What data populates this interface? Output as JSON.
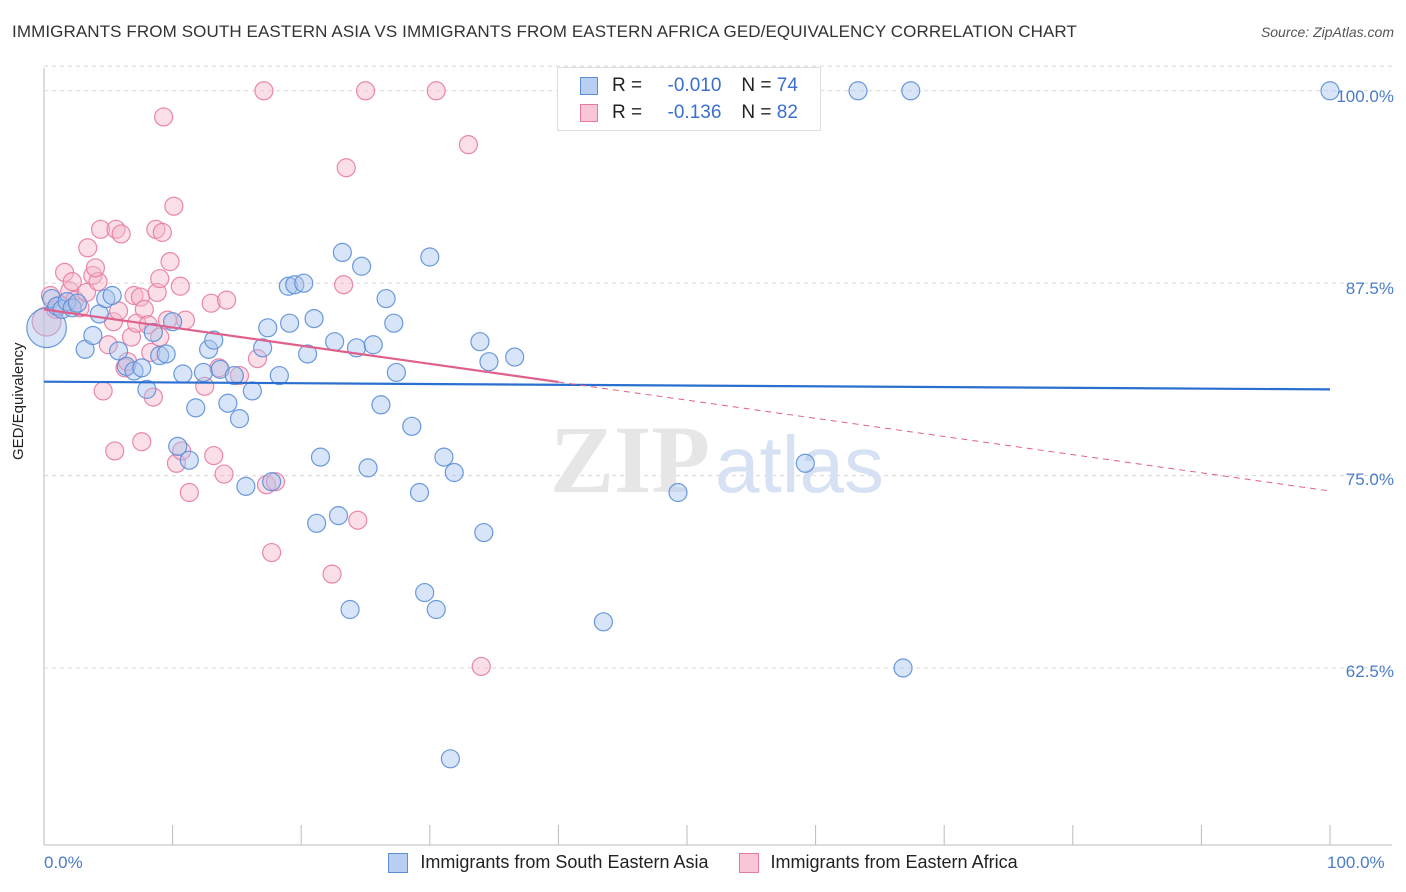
{
  "header": {
    "title": "IMMIGRANTS FROM SOUTH EASTERN ASIA VS IMMIGRANTS FROM EASTERN AFRICA GED/EQUIVALENCY CORRELATION CHART",
    "source": "Source: ZipAtlas.com"
  },
  "watermark": {
    "zip": "ZIP",
    "atlas": "atlas"
  },
  "legend": {
    "r_label": "R =",
    "n_label": "N =",
    "series1": {
      "r": "-0.010",
      "n": "74"
    },
    "series2": {
      "r": "-0.136",
      "n": "82"
    }
  },
  "colors": {
    "blue": "#5b8fd8",
    "blue_fill": "#a9c4ee",
    "blue_line": "#2a6fcf",
    "pink": "#e87ba0",
    "pink_fill": "#f5b8cc",
    "pink_line": "#e0608c",
    "tick_text": "#4a7cc9"
  },
  "chart_data": {
    "type": "scatter",
    "title": "IMMIGRANTS FROM SOUTH EASTERN ASIA VS IMMIGRANTS FROM EASTERN AFRICA GED/EQUIVALENCY CORRELATION CHART",
    "xlabel": "",
    "ylabel": "GED/Equivalency",
    "xlim": [
      0,
      100
    ],
    "ylim": [
      51.0,
      102.0
    ],
    "x_tick_labels": [
      "0.0%",
      "100.0%"
    ],
    "y_ticks": [
      62.5,
      75.0,
      87.5,
      100.0
    ],
    "y_tick_labels": [
      "62.5%",
      "75.0%",
      "87.5%",
      "100.0%"
    ],
    "grid": true,
    "legend_position": "top-center",
    "series": [
      {
        "name": "Immigrants from South Eastern Asia",
        "color": "blue",
        "trend": {
          "x0": 0,
          "y0": 81.1,
          "x1": 100,
          "y1": 80.6,
          "solid_to": 100
        },
        "points": [
          {
            "x": 0.2,
            "y": 84.6,
            "s": 2.2
          },
          {
            "x": 0.6,
            "y": 86.5
          },
          {
            "x": 1.0,
            "y": 86.0
          },
          {
            "x": 1.4,
            "y": 85.8
          },
          {
            "x": 1.8,
            "y": 86.3
          },
          {
            "x": 2.2,
            "y": 85.9
          },
          {
            "x": 2.6,
            "y": 86.2
          },
          {
            "x": 3.2,
            "y": 83.2
          },
          {
            "x": 3.8,
            "y": 84.1
          },
          {
            "x": 4.3,
            "y": 85.5
          },
          {
            "x": 4.8,
            "y": 86.5
          },
          {
            "x": 5.3,
            "y": 86.7
          },
          {
            "x": 5.8,
            "y": 83.1
          },
          {
            "x": 6.4,
            "y": 82.1
          },
          {
            "x": 7.0,
            "y": 81.8
          },
          {
            "x": 7.6,
            "y": 82.0
          },
          {
            "x": 8.0,
            "y": 80.6
          },
          {
            "x": 8.5,
            "y": 84.3
          },
          {
            "x": 9.0,
            "y": 82.8
          },
          {
            "x": 9.5,
            "y": 82.9
          },
          {
            "x": 10.0,
            "y": 85.0
          },
          {
            "x": 10.4,
            "y": 76.9
          },
          {
            "x": 10.8,
            "y": 81.6
          },
          {
            "x": 11.3,
            "y": 76.0
          },
          {
            "x": 11.8,
            "y": 79.4
          },
          {
            "x": 12.4,
            "y": 81.7
          },
          {
            "x": 12.8,
            "y": 83.2
          },
          {
            "x": 13.2,
            "y": 83.8
          },
          {
            "x": 13.7,
            "y": 81.9
          },
          {
            "x": 14.3,
            "y": 79.7
          },
          {
            "x": 14.8,
            "y": 81.5
          },
          {
            "x": 15.2,
            "y": 78.7
          },
          {
            "x": 16.2,
            "y": 80.5
          },
          {
            "x": 15.7,
            "y": 74.3
          },
          {
            "x": 17.0,
            "y": 83.3
          },
          {
            "x": 17.4,
            "y": 84.6
          },
          {
            "x": 17.7,
            "y": 74.6
          },
          {
            "x": 18.3,
            "y": 81.5
          },
          {
            "x": 19.0,
            "y": 87.3
          },
          {
            "x": 19.5,
            "y": 87.4
          },
          {
            "x": 19.1,
            "y": 84.9
          },
          {
            "x": 20.2,
            "y": 87.5
          },
          {
            "x": 20.5,
            "y": 82.9
          },
          {
            "x": 21.0,
            "y": 85.2
          },
          {
            "x": 21.5,
            "y": 76.2
          },
          {
            "x": 21.2,
            "y": 71.9
          },
          {
            "x": 22.6,
            "y": 83.7
          },
          {
            "x": 22.9,
            "y": 72.4
          },
          {
            "x": 23.2,
            "y": 89.5
          },
          {
            "x": 23.8,
            "y": 66.3
          },
          {
            "x": 24.3,
            "y": 83.3
          },
          {
            "x": 24.7,
            "y": 88.6
          },
          {
            "x": 25.2,
            "y": 75.5
          },
          {
            "x": 25.6,
            "y": 83.5
          },
          {
            "x": 26.2,
            "y": 79.6
          },
          {
            "x": 26.6,
            "y": 86.5
          },
          {
            "x": 27.2,
            "y": 84.9
          },
          {
            "x": 27.4,
            "y": 81.7
          },
          {
            "x": 28.6,
            "y": 78.2
          },
          {
            "x": 29.2,
            "y": 73.9
          },
          {
            "x": 29.6,
            "y": 67.4
          },
          {
            "x": 30.0,
            "y": 89.2
          },
          {
            "x": 30.5,
            "y": 66.3
          },
          {
            "x": 31.1,
            "y": 76.2
          },
          {
            "x": 31.9,
            "y": 75.2
          },
          {
            "x": 31.6,
            "y": 56.6
          },
          {
            "x": 33.9,
            "y": 83.7
          },
          {
            "x": 34.2,
            "y": 71.3
          },
          {
            "x": 34.6,
            "y": 82.4
          },
          {
            "x": 36.6,
            "y": 82.7
          },
          {
            "x": 43.5,
            "y": 65.5
          },
          {
            "x": 49.3,
            "y": 73.9
          },
          {
            "x": 59.2,
            "y": 75.8
          },
          {
            "x": 63.3,
            "y": 100.0
          },
          {
            "x": 66.8,
            "y": 62.5
          },
          {
            "x": 67.4,
            "y": 100.0
          },
          {
            "x": 100.0,
            "y": 100.0
          }
        ]
      },
      {
        "name": "Immigrants from Eastern Africa",
        "color": "pink",
        "trend": {
          "x0": 0,
          "y0": 85.8,
          "x1": 100,
          "y1": 74.0,
          "solid_to": 40.0
        },
        "points": [
          {
            "x": 0.2,
            "y": 85.0,
            "s": 1.6
          },
          {
            "x": 0.5,
            "y": 86.7
          },
          {
            "x": 0.9,
            "y": 85.8
          },
          {
            "x": 1.3,
            "y": 86.1
          },
          {
            "x": 1.6,
            "y": 88.2
          },
          {
            "x": 2.0,
            "y": 87.0
          },
          {
            "x": 2.4,
            "y": 86.4
          },
          {
            "x": 2.8,
            "y": 85.9
          },
          {
            "x": 2.2,
            "y": 87.6
          },
          {
            "x": 3.3,
            "y": 86.9
          },
          {
            "x": 3.4,
            "y": 89.8
          },
          {
            "x": 3.8,
            "y": 88.0
          },
          {
            "x": 4.2,
            "y": 87.6
          },
          {
            "x": 4.0,
            "y": 88.5
          },
          {
            "x": 4.4,
            "y": 91.0
          },
          {
            "x": 4.6,
            "y": 80.5
          },
          {
            "x": 5.0,
            "y": 83.5
          },
          {
            "x": 5.4,
            "y": 85.0
          },
          {
            "x": 5.6,
            "y": 91.0
          },
          {
            "x": 5.5,
            "y": 76.6
          },
          {
            "x": 6.0,
            "y": 90.7
          },
          {
            "x": 5.8,
            "y": 85.7
          },
          {
            "x": 6.3,
            "y": 82.0
          },
          {
            "x": 6.5,
            "y": 82.4
          },
          {
            "x": 6.8,
            "y": 84.0
          },
          {
            "x": 7.0,
            "y": 86.7
          },
          {
            "x": 7.2,
            "y": 84.9
          },
          {
            "x": 7.5,
            "y": 86.6
          },
          {
            "x": 7.6,
            "y": 77.2
          },
          {
            "x": 7.8,
            "y": 85.8
          },
          {
            "x": 8.1,
            "y": 84.8
          },
          {
            "x": 8.3,
            "y": 83.0
          },
          {
            "x": 8.5,
            "y": 80.1
          },
          {
            "x": 8.8,
            "y": 86.9
          },
          {
            "x": 8.7,
            "y": 91.0
          },
          {
            "x": 9.0,
            "y": 84.0
          },
          {
            "x": 9.2,
            "y": 90.8
          },
          {
            "x": 9.0,
            "y": 87.8
          },
          {
            "x": 9.3,
            "y": 98.3
          },
          {
            "x": 9.6,
            "y": 85.1
          },
          {
            "x": 9.8,
            "y": 88.9
          },
          {
            "x": 10.1,
            "y": 92.5
          },
          {
            "x": 10.3,
            "y": 75.8
          },
          {
            "x": 10.6,
            "y": 87.3
          },
          {
            "x": 10.7,
            "y": 76.6
          },
          {
            "x": 11.0,
            "y": 85.1
          },
          {
            "x": 11.3,
            "y": 73.9
          },
          {
            "x": 12.5,
            "y": 80.8
          },
          {
            "x": 13.0,
            "y": 86.2
          },
          {
            "x": 13.2,
            "y": 76.3
          },
          {
            "x": 13.6,
            "y": 82.0
          },
          {
            "x": 14.0,
            "y": 75.1
          },
          {
            "x": 14.2,
            "y": 86.4
          },
          {
            "x": 15.2,
            "y": 81.5
          },
          {
            "x": 16.6,
            "y": 82.6
          },
          {
            "x": 17.1,
            "y": 100.0
          },
          {
            "x": 17.3,
            "y": 74.4
          },
          {
            "x": 17.7,
            "y": 70.0
          },
          {
            "x": 18.0,
            "y": 74.6
          },
          {
            "x": 22.4,
            "y": 68.6
          },
          {
            "x": 23.3,
            "y": 87.4
          },
          {
            "x": 23.5,
            "y": 95.0
          },
          {
            "x": 24.4,
            "y": 72.1
          },
          {
            "x": 25.0,
            "y": 100.0
          },
          {
            "x": 30.5,
            "y": 100.0
          },
          {
            "x": 33.0,
            "y": 96.5
          },
          {
            "x": 34.0,
            "y": 62.6
          }
        ]
      }
    ]
  },
  "bottom_legend": {
    "series1": "Immigrants from South Eastern Asia",
    "series2": "Immigrants from Eastern Africa"
  }
}
